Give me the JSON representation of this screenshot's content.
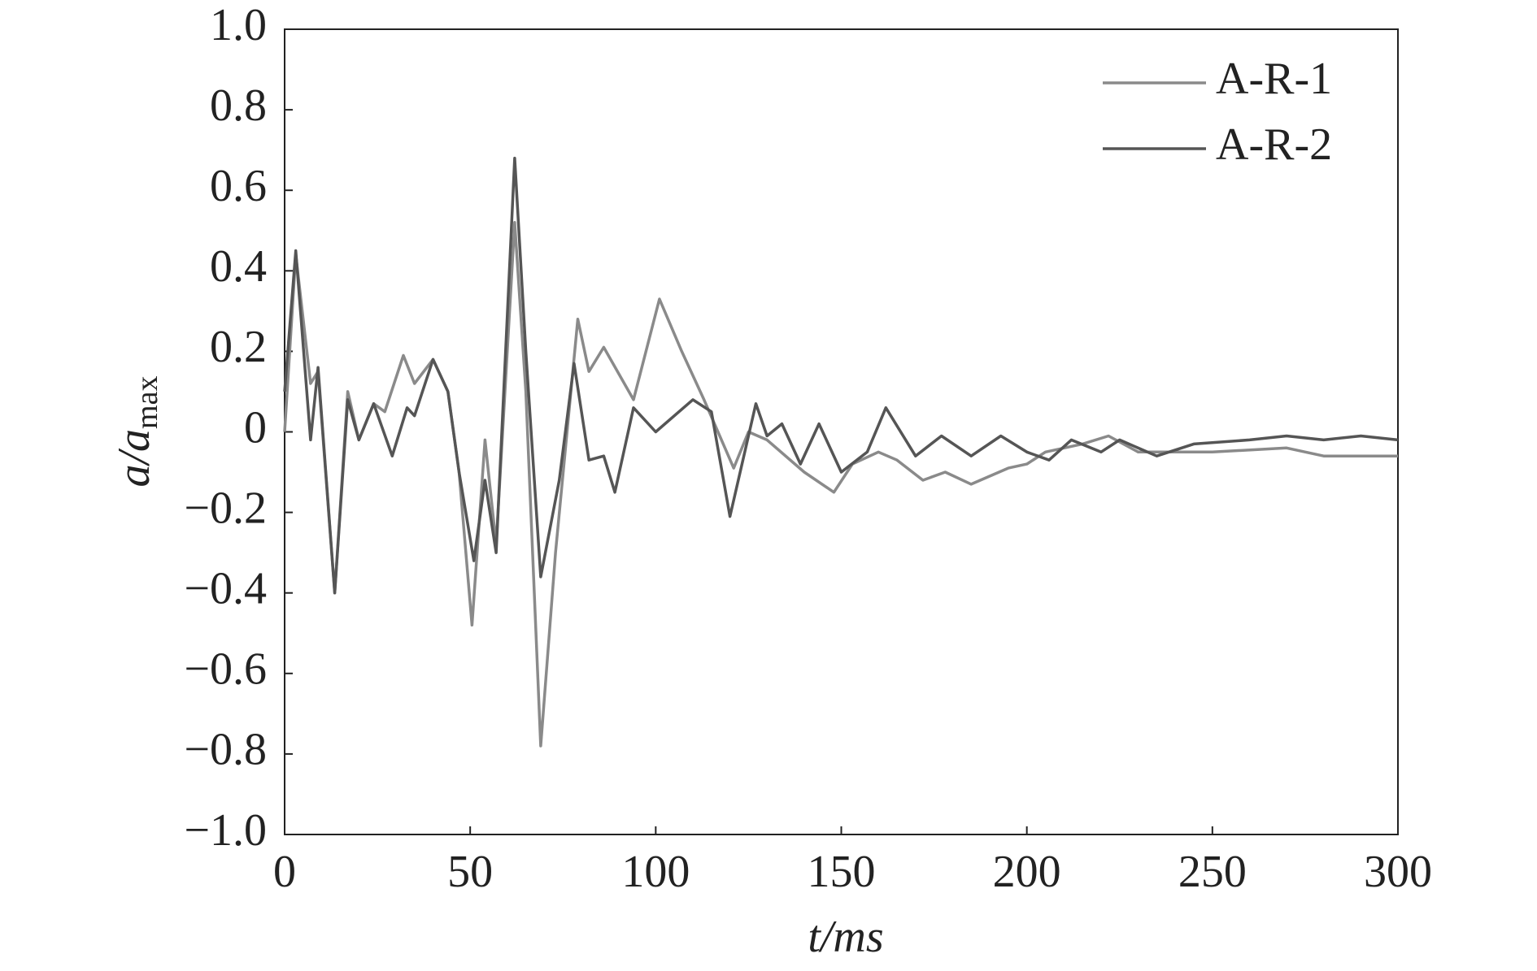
{
  "chart_data": {
    "type": "line",
    "xlabel": "t/ms",
    "ylabel": "a/a",
    "ylabel_subscript": "max",
    "xlim": [
      0,
      300
    ],
    "ylim": [
      -1,
      1
    ],
    "xticks": [
      0,
      50,
      100,
      150,
      200,
      250,
      300
    ],
    "yticks": [
      {
        "value": -1,
        "label": "−1.0"
      },
      {
        "value": -0.8,
        "label": "−0.8"
      },
      {
        "value": -0.6,
        "label": "−0.6"
      },
      {
        "value": -0.4,
        "label": "−0.4"
      },
      {
        "value": -0.2,
        "label": "−0.2"
      },
      0,
      0.2,
      0.4,
      0.6,
      0.8,
      {
        "value": 1,
        "label": "1.0"
      }
    ],
    "legend": "upper right",
    "series": [
      {
        "name": "A-R-1",
        "color": "#8a8a8a",
        "x": [
          0,
          3,
          7,
          9,
          13.5,
          17,
          20,
          24,
          27,
          32,
          35,
          40,
          44,
          47,
          50.5,
          54,
          57,
          62,
          65,
          69,
          73,
          79,
          82,
          86,
          94,
          101,
          107,
          113,
          121,
          125,
          130,
          140,
          148,
          153,
          160,
          165,
          172,
          178,
          185,
          195,
          200,
          205,
          215,
          222,
          230,
          250,
          270,
          280,
          300
        ],
        "values": [
          0.0,
          0.44,
          0.12,
          0.15,
          -0.4,
          0.1,
          -0.02,
          0.07,
          0.05,
          0.19,
          0.12,
          0.18,
          0.1,
          -0.1,
          -0.48,
          -0.02,
          -0.28,
          0.52,
          0.1,
          -0.78,
          -0.3,
          0.28,
          0.15,
          0.21,
          0.08,
          0.33,
          0.2,
          0.08,
          -0.09,
          0.0,
          -0.02,
          -0.1,
          -0.15,
          -0.08,
          -0.05,
          -0.07,
          -0.12,
          -0.1,
          -0.13,
          -0.09,
          -0.08,
          -0.05,
          -0.03,
          -0.01,
          -0.05,
          -0.05,
          -0.04,
          -0.06,
          -0.06
        ]
      },
      {
        "name": "A-R-2",
        "color": "#555555",
        "x": [
          0,
          3,
          7,
          9,
          13.5,
          17,
          20,
          24,
          29,
          33,
          35,
          40,
          44,
          47,
          51,
          54,
          57,
          62,
          65,
          69,
          74,
          78,
          82,
          86,
          89,
          94,
          100,
          110,
          115,
          120,
          127,
          130,
          134,
          139,
          144,
          150,
          157,
          162,
          170,
          177,
          185,
          193,
          200,
          206,
          212,
          220,
          225,
          235,
          245,
          260,
          270,
          280,
          290,
          300
        ],
        "values": [
          0.1,
          0.45,
          -0.02,
          0.16,
          -0.4,
          0.08,
          -0.02,
          0.07,
          -0.06,
          0.06,
          0.04,
          0.18,
          0.1,
          -0.1,
          -0.32,
          -0.12,
          -0.3,
          0.68,
          0.2,
          -0.36,
          -0.12,
          0.17,
          -0.07,
          -0.06,
          -0.15,
          0.06,
          0.0,
          0.08,
          0.05,
          -0.21,
          0.07,
          -0.01,
          0.02,
          -0.08,
          0.02,
          -0.1,
          -0.05,
          0.06,
          -0.06,
          -0.01,
          -0.06,
          -0.01,
          -0.05,
          -0.07,
          -0.02,
          -0.05,
          -0.02,
          -0.06,
          -0.03,
          -0.02,
          -0.01,
          -0.02,
          -0.01,
          -0.02
        ]
      }
    ]
  }
}
